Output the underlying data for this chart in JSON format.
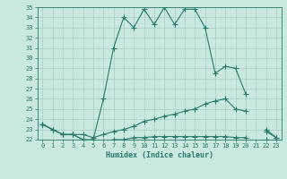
{
  "xlabel": "Humidex (Indice chaleur)",
  "x": [
    0,
    1,
    2,
    3,
    4,
    5,
    6,
    7,
    8,
    9,
    10,
    11,
    12,
    13,
    14,
    15,
    16,
    17,
    18,
    19,
    20,
    21,
    22,
    23
  ],
  "line_max": [
    23.5,
    23.0,
    22.5,
    22.5,
    22.0,
    22.0,
    26.0,
    31.0,
    34.0,
    33.0,
    34.8,
    33.3,
    35.0,
    33.3,
    34.8,
    34.8,
    33.0,
    28.5,
    29.2,
    29.0,
    26.5,
    null,
    22.8,
    22.2
  ],
  "line_mid": [
    23.5,
    23.0,
    22.5,
    22.5,
    22.5,
    22.2,
    22.5,
    22.8,
    23.0,
    23.3,
    23.8,
    24.0,
    24.3,
    24.5,
    24.8,
    25.0,
    25.5,
    25.8,
    26.0,
    25.0,
    24.8,
    null,
    23.0,
    22.2
  ],
  "line_min": [
    23.5,
    23.0,
    22.5,
    22.5,
    22.0,
    21.8,
    21.8,
    22.0,
    22.0,
    22.2,
    22.2,
    22.3,
    22.3,
    22.3,
    22.3,
    22.3,
    22.3,
    22.3,
    22.3,
    22.2,
    22.2,
    null,
    22.0,
    22.0
  ],
  "line_color": "#2a7a6a",
  "bg_color": "#c8e8e0",
  "grid_color": "#a8ccc8",
  "ylim": [
    22,
    35
  ],
  "xlim": [
    -0.5,
    23.5
  ],
  "yticks": [
    22,
    23,
    24,
    25,
    26,
    27,
    28,
    29,
    30,
    31,
    32,
    33,
    34,
    35
  ],
  "xticks": [
    0,
    1,
    2,
    3,
    4,
    5,
    6,
    7,
    8,
    9,
    10,
    11,
    12,
    13,
    14,
    15,
    16,
    17,
    18,
    19,
    20,
    21,
    22,
    23
  ]
}
